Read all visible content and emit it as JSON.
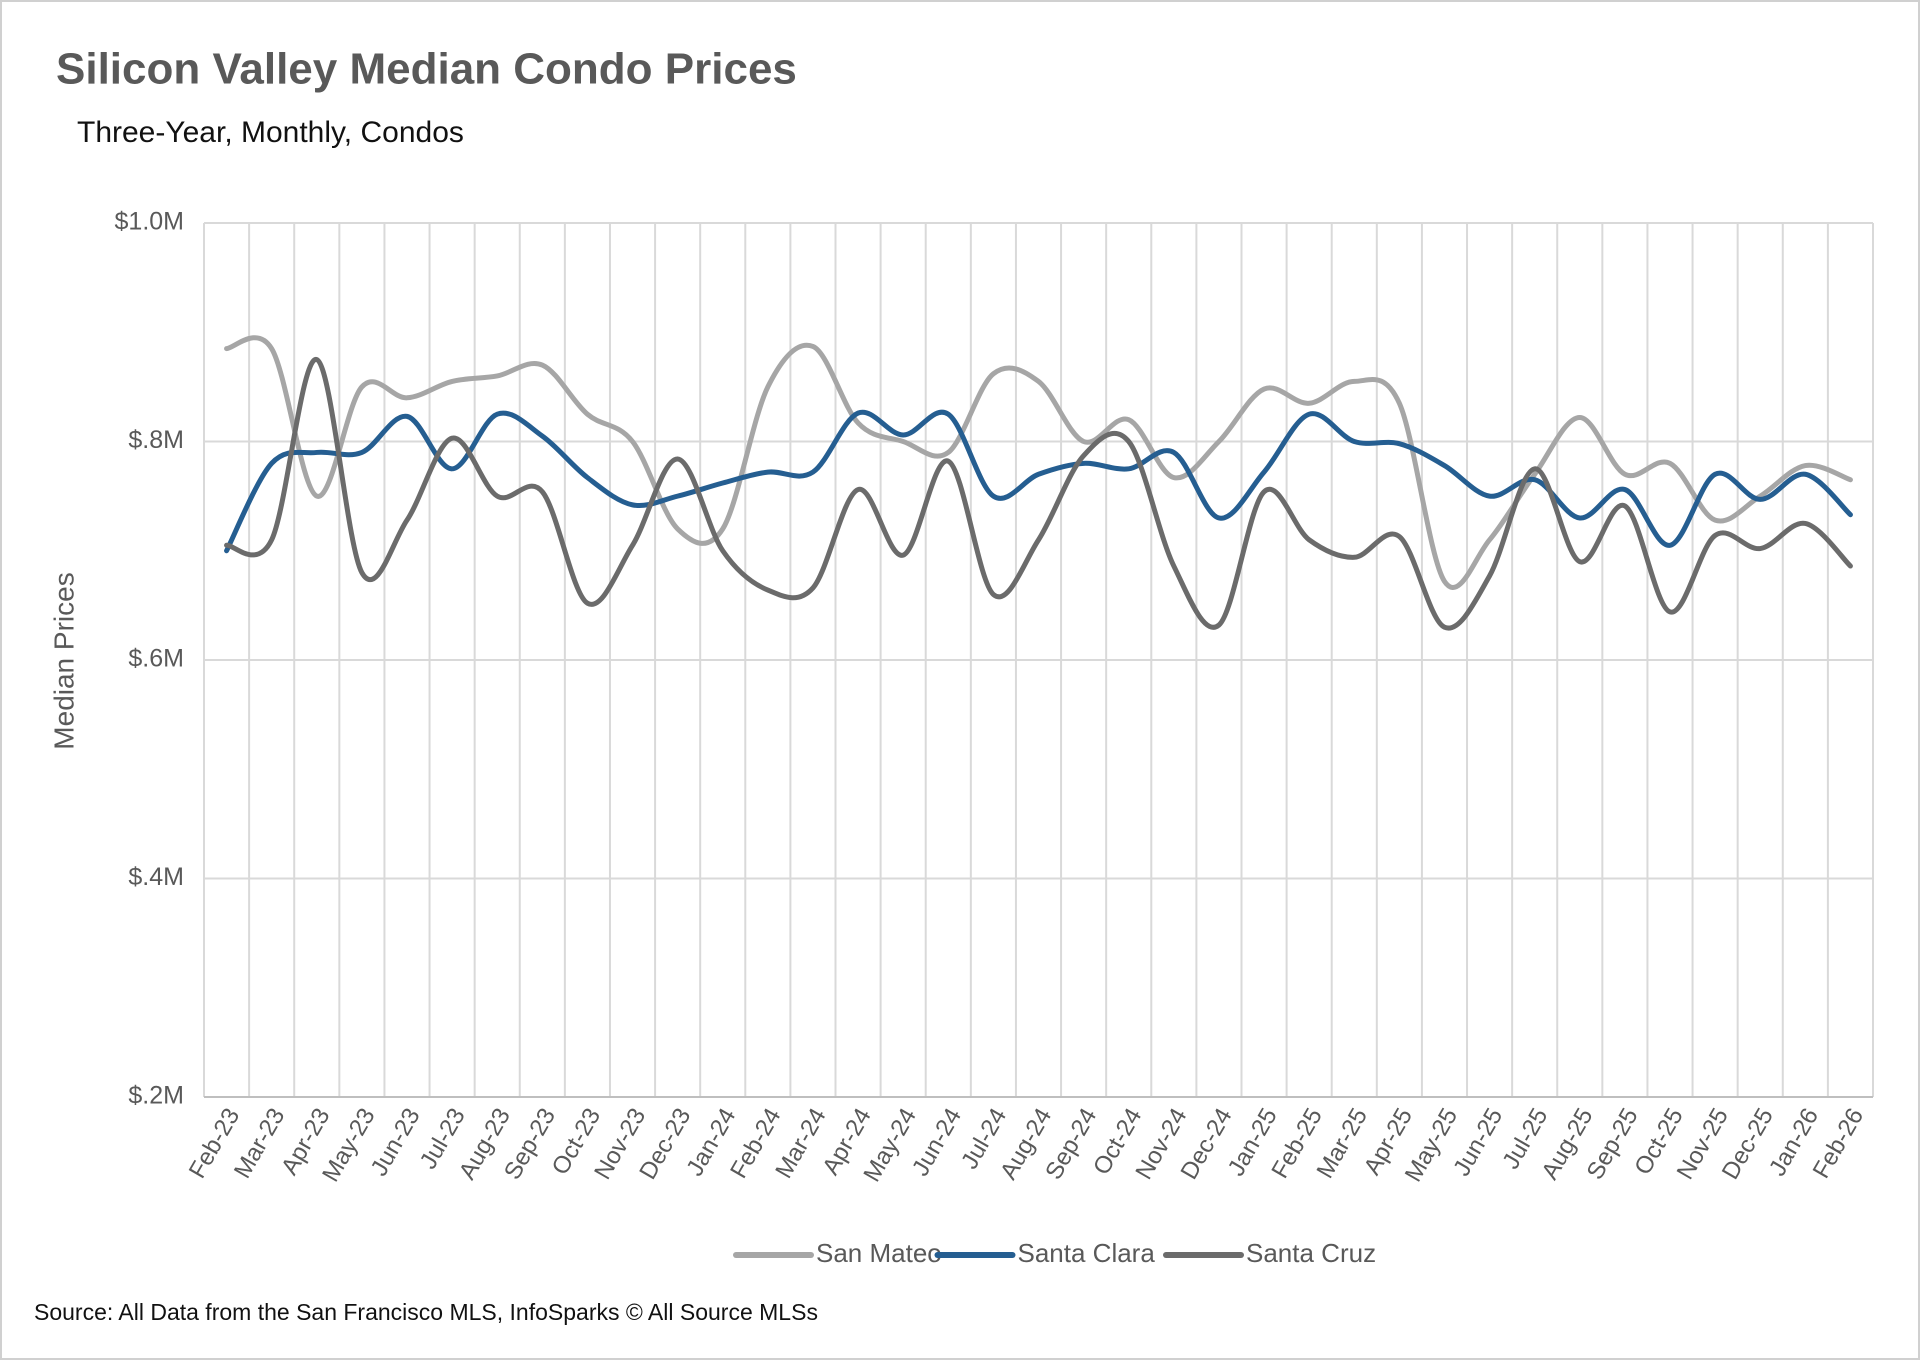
{
  "chart_data": {
    "type": "line",
    "title": "Silicon Valley Median Condo Prices",
    "subtitle": "Three-Year, Monthly, Condos",
    "y_label": "Median Prices",
    "source": "Source: All Data from the San Francisco MLS, InfoSparks © All Source MLSs",
    "categories": [
      "Feb-23",
      "Mar-23",
      "Apr-23",
      "May-23",
      "Jun-23",
      "Jul-23",
      "Aug-23",
      "Sep-23",
      "Oct-23",
      "Nov-23",
      "Dec-23",
      "Jan-24",
      "Feb-24",
      "Mar-24",
      "Apr-24",
      "May-24",
      "Jun-24",
      "Jul-24",
      "Aug-24",
      "Sep-24",
      "Oct-24",
      "Nov-24",
      "Dec-24",
      "Jan-25",
      "Feb-25",
      "Mar-25",
      "Apr-25",
      "May-25",
      "Jun-25",
      "Jul-25",
      "Aug-25",
      "Sep-25",
      "Oct-25",
      "Nov-25",
      "Dec-25",
      "Jan-26",
      "Feb-26"
    ],
    "series": [
      {
        "name": "San Mateo",
        "color": "#a6a6a6",
        "values": [
          885000,
          885000,
          750000,
          850000,
          840000,
          855000,
          860000,
          870000,
          825000,
          800000,
          720000,
          720000,
          850000,
          887000,
          817000,
          800000,
          790000,
          862000,
          855000,
          800000,
          820000,
          767000,
          800000,
          848000,
          835000,
          855000,
          835000,
          672000,
          710000,
          770000,
          822000,
          770000,
          780000,
          728000,
          750000,
          778000,
          765000
        ]
      },
      {
        "name": "Santa Clara",
        "color": "#255e91",
        "values": [
          700000,
          780000,
          790000,
          790000,
          823000,
          775000,
          825000,
          805000,
          767000,
          742000,
          750000,
          762000,
          772000,
          772000,
          826000,
          806000,
          825000,
          750000,
          770000,
          780000,
          775000,
          790000,
          730000,
          772000,
          825000,
          800000,
          798000,
          778000,
          750000,
          765000,
          730000,
          756000,
          705000,
          770000,
          747000,
          770000,
          733000
        ]
      },
      {
        "name": "Santa Cruz",
        "color": "#6b6b6b",
        "values": [
          705000,
          710000,
          875000,
          680000,
          728000,
          803000,
          750000,
          754000,
          652000,
          705000,
          784000,
          700000,
          664000,
          666000,
          756000,
          696000,
          782000,
          660000,
          710000,
          787000,
          800000,
          686000,
          632000,
          754000,
          710000,
          694000,
          713000,
          630000,
          677000,
          775000,
          690000,
          741000,
          644000,
          714000,
          702000,
          725000,
          686000
        ]
      }
    ],
    "ylim": [
      200000,
      1000000
    ],
    "yticks": [
      {
        "value": 200000,
        "label": "$.2M"
      },
      {
        "value": 400000,
        "label": "$.4M"
      },
      {
        "value": 600000,
        "label": "$.6M"
      },
      {
        "value": 800000,
        "label": "$.8M"
      },
      {
        "value": 1000000,
        "label": "$1.0M"
      }
    ],
    "grid": true,
    "legend": "bottom"
  }
}
